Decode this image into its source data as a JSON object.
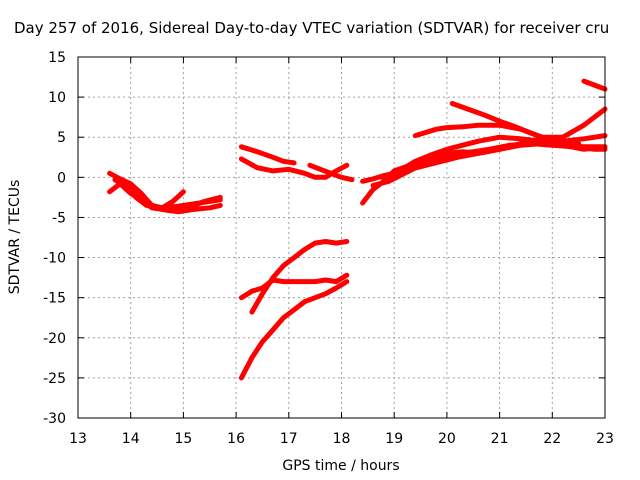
{
  "chart_data": {
    "type": "line",
    "title": "Day 257 of 2016, Sidereal Day-to-day VTEC variation (SDTVAR) for receiver cru",
    "xlabel": "GPS time / hours",
    "ylabel": "SDTVAR / TECUs",
    "xlim": [
      13,
      23
    ],
    "ylim": [
      -30,
      15
    ],
    "xticks": [
      "13",
      "14",
      "15",
      "16",
      "17",
      "18",
      "19",
      "20",
      "21",
      "22",
      "23"
    ],
    "yticks": [
      "15",
      "10",
      "5",
      "0",
      "-5",
      "-10",
      "-15",
      "-20",
      "-25",
      "-30"
    ],
    "grid": true,
    "color": "#ff0000",
    "series": [
      {
        "x": [
          13.6,
          13.8,
          14.0,
          14.2,
          14.4,
          14.6,
          14.8,
          15.0
        ],
        "y": [
          0.5,
          -0.2,
          -0.8,
          -2.0,
          -3.5,
          -3.8,
          -3.0,
          -1.8
        ]
      },
      {
        "x": [
          13.6,
          13.8,
          14.0,
          14.2,
          14.4,
          14.6,
          14.8,
          15.0,
          15.2,
          15.4,
          15.7
        ],
        "y": [
          -1.8,
          -0.8,
          -1.5,
          -2.8,
          -3.8,
          -4.0,
          -4.2,
          -4.0,
          -3.5,
          -3.0,
          -2.5
        ]
      },
      {
        "x": [
          13.7,
          13.9,
          14.1,
          14.3,
          14.6,
          14.9,
          15.2,
          15.5,
          15.7
        ],
        "y": [
          -0.3,
          -1.2,
          -2.5,
          -3.5,
          -3.8,
          -3.6,
          -3.3,
          -3.0,
          -2.8
        ]
      },
      {
        "x": [
          13.8,
          14.0,
          14.3,
          14.6,
          14.9,
          15.2,
          15.5,
          15.7
        ],
        "y": [
          -0.8,
          -2.0,
          -3.2,
          -4.0,
          -4.3,
          -4.0,
          -3.8,
          -3.5
        ]
      },
      {
        "x": [
          16.1,
          16.4,
          16.7,
          16.9,
          17.1
        ],
        "y": [
          3.8,
          3.2,
          2.5,
          2.0,
          1.8
        ]
      },
      {
        "x": [
          16.1,
          16.4,
          16.7,
          17.0,
          17.3,
          17.5,
          17.7,
          17.9,
          18.1
        ],
        "y": [
          2.3,
          1.2,
          0.8,
          1.0,
          0.5,
          0.0,
          0.0,
          0.8,
          1.5
        ]
      },
      {
        "x": [
          17.4,
          17.6,
          17.8,
          18.0,
          18.2
        ],
        "y": [
          1.5,
          1.0,
          0.5,
          0.0,
          -0.3
        ]
      },
      {
        "x": [
          16.1,
          16.3,
          16.5,
          16.7,
          16.9,
          17.1,
          17.3,
          17.5,
          17.7,
          17.9,
          18.1
        ],
        "y": [
          -25.0,
          -22.5,
          -20.5,
          -19.0,
          -17.5,
          -16.5,
          -15.5,
          -15.0,
          -14.5,
          -13.8,
          -13.0
        ]
      },
      {
        "x": [
          16.1,
          16.3,
          16.5,
          16.7,
          16.9,
          17.1,
          17.3,
          17.5,
          17.7,
          17.9,
          18.1
        ],
        "y": [
          -15.0,
          -14.2,
          -13.8,
          -12.8,
          -13.0,
          -13.0,
          -13.0,
          -13.0,
          -12.8,
          -13.0,
          -12.2
        ]
      },
      {
        "x": [
          16.3,
          16.5,
          16.7,
          16.9,
          17.1,
          17.3,
          17.5,
          17.7,
          17.9,
          18.1
        ],
        "y": [
          -16.8,
          -14.5,
          -12.5,
          -11.0,
          -10.0,
          -9.0,
          -8.2,
          -8.0,
          -8.2,
          -8.0
        ]
      },
      {
        "x": [
          18.4,
          18.6,
          18.8,
          19.0,
          19.3,
          19.6,
          19.9,
          20.2,
          20.5,
          20.8,
          21.2,
          21.6,
          22.0,
          22.4,
          22.8,
          23.0
        ],
        "y": [
          -3.2,
          -1.5,
          -0.5,
          0.8,
          1.5,
          2.0,
          2.5,
          3.0,
          3.2,
          3.5,
          4.0,
          4.2,
          4.0,
          3.8,
          3.5,
          3.5
        ]
      },
      {
        "x": [
          18.4,
          18.6,
          18.8,
          19.0,
          19.3,
          19.6,
          19.9,
          20.2,
          20.6,
          21.0,
          21.4,
          21.8,
          22.2,
          22.6,
          23.0
        ],
        "y": [
          -0.5,
          -0.2,
          0.2,
          0.5,
          1.0,
          1.5,
          2.0,
          2.5,
          3.0,
          3.5,
          4.0,
          4.2,
          4.0,
          3.8,
          3.8
        ]
      },
      {
        "x": [
          18.6,
          18.9,
          19.2,
          19.5,
          19.8,
          20.0,
          20.3,
          20.6,
          21.0,
          21.4,
          21.8,
          22.2,
          22.6,
          23.0
        ],
        "y": [
          -1.0,
          -0.5,
          0.5,
          1.5,
          2.5,
          3.0,
          3.2,
          3.0,
          3.5,
          4.2,
          4.8,
          4.5,
          4.8,
          5.2
        ]
      },
      {
        "x": [
          18.8,
          19.1,
          19.4,
          19.7,
          20.0,
          20.3,
          20.6,
          21.0,
          21.4,
          21.8,
          22.2,
          22.6,
          23.0
        ],
        "y": [
          -0.2,
          0.8,
          2.0,
          2.8,
          3.5,
          4.0,
          4.5,
          5.0,
          4.8,
          4.5,
          4.0,
          3.5,
          3.8
        ]
      },
      {
        "x": [
          19.4,
          19.8,
          20.0,
          20.3,
          20.6,
          21.0,
          21.4,
          21.8,
          22.2,
          22.6,
          23.0
        ],
        "y": [
          5.2,
          6.0,
          6.2,
          6.3,
          6.5,
          6.5,
          6.0,
          5.0,
          5.0,
          6.5,
          8.5
        ]
      },
      {
        "x": [
          20.1,
          20.4,
          20.7,
          21.0,
          21.3,
          21.6,
          21.9,
          22.2,
          22.5
        ],
        "y": [
          9.2,
          8.5,
          7.8,
          7.0,
          6.3,
          5.5,
          4.8,
          4.5,
          4.2
        ]
      },
      {
        "x": [
          22.6,
          22.8,
          23.0
        ],
        "y": [
          12.0,
          11.5,
          11.0
        ]
      }
    ]
  }
}
